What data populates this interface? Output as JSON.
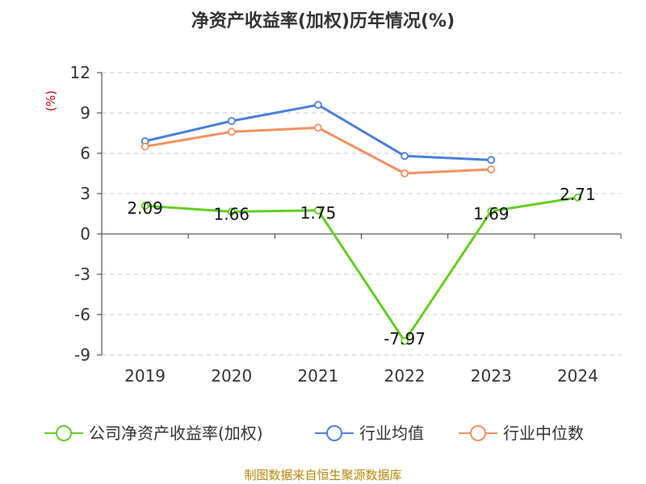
{
  "title": "净资产收益率(加权)历年情况(%)",
  "source": "制图数据来自恒生聚源数据库",
  "chart_data": {
    "type": "line",
    "title": "净资产收益率(加权)历年情况(%)",
    "ylabel": "(%)",
    "xlabel": "",
    "categories": [
      "2019",
      "2020",
      "2021",
      "2022",
      "2023",
      "2024"
    ],
    "ylim": [
      -9,
      12
    ],
    "yticks": [
      12,
      9,
      6,
      3,
      0,
      -3,
      -6,
      -9
    ],
    "grid": true,
    "legend_position": "bottom",
    "series": [
      {
        "name": "公司净资产收益率(加权)",
        "color": "#66cc22",
        "values": [
          2.09,
          1.66,
          1.75,
          -7.97,
          1.69,
          2.71
        ],
        "labels": [
          "2.09",
          "1.66",
          "1.75",
          "-7.97",
          "1.69",
          "2.71"
        ]
      },
      {
        "name": "行业均值",
        "color": "#4a7fd8",
        "values": [
          6.9,
          8.4,
          9.6,
          5.8,
          5.5,
          null
        ]
      },
      {
        "name": "行业中位数",
        "color": "#f49060",
        "values": [
          6.5,
          7.6,
          7.9,
          4.5,
          4.8,
          null
        ]
      }
    ]
  }
}
